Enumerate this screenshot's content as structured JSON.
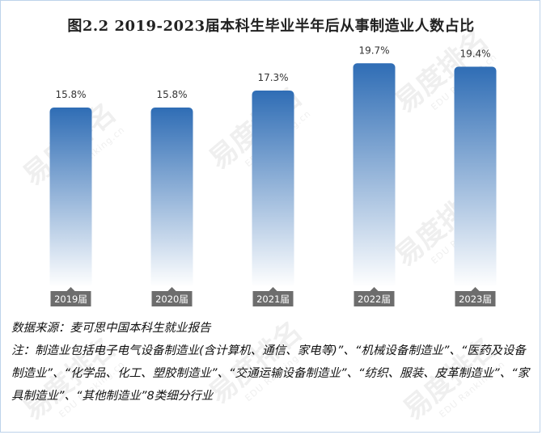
{
  "title": "图2.2  2019-2023届本科生毕业半年后从事制造业人数占比",
  "chart_data": {
    "type": "bar",
    "categories": [
      "2019届",
      "2020届",
      "2021届",
      "2022届",
      "2023届"
    ],
    "values": [
      15.8,
      15.8,
      17.3,
      19.7,
      19.4
    ],
    "value_labels": [
      "15.8%",
      "15.8%",
      "17.3%",
      "19.7%",
      "19.4%"
    ],
    "ylim": [
      0,
      21
    ],
    "grid": false,
    "legend": "none",
    "bar_color_top": "#2f6db5",
    "bar_color_bottom": "#ffffff",
    "label_box_color": "#6d6d6d"
  },
  "notes": {
    "source": "数据来源：麦可思中国本科生就业报告",
    "note": "注：制造业包括电子电气设备制造业(含计算机、通信、家电等)”、“机械设备制造业”、“医药及设备制造业”、“化学品、化工、塑胶制造业”、“交通运输设备制造业”、“纺织、服装、皮革制造业”、“家具制造业”、“其他制造业”8类细分行业"
  },
  "watermark": {
    "text": "易度排名",
    "subtext": "EDU Ranking.cn"
  }
}
